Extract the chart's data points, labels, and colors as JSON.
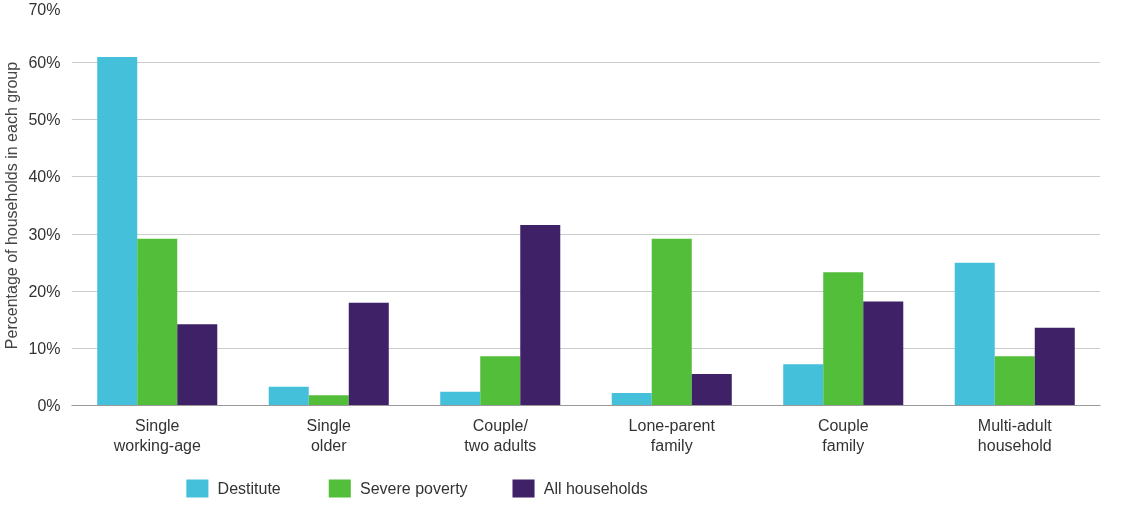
{
  "chart_data": {
    "type": "bar",
    "ylabel": "Percentage of households in each group",
    "categories": [
      "Single\nworking-age",
      "Single\nolder",
      "Couple/\ntwo adults",
      "Lone-parent\nfamily",
      "Couple\nfamily",
      "Multi-adult\nhousehold"
    ],
    "series": [
      {
        "name": "Destitute",
        "color": "#44c0db",
        "values": [
          61,
          3.3,
          2.4,
          2.2,
          7.2,
          25
        ]
      },
      {
        "name": "Severe poverty",
        "color": "#52be3a",
        "values": [
          29.2,
          1.8,
          8.6,
          29.2,
          23.3,
          8.6
        ]
      },
      {
        "name": "All households",
        "color": "#3f2167",
        "values": [
          14.2,
          18.0,
          31.6,
          5.5,
          18.2,
          13.6
        ]
      }
    ],
    "ylim": [
      0,
      70
    ],
    "yticks": [
      {
        "value": 0,
        "label": "0%"
      },
      {
        "value": 10,
        "label": "10%"
      },
      {
        "value": 20,
        "label": "20%"
      },
      {
        "value": 30,
        "label": "30%"
      },
      {
        "value": 40,
        "label": "40%"
      },
      {
        "value": 50,
        "label": "50%"
      },
      {
        "value": 60,
        "label": "60%"
      },
      {
        "value": 70,
        "label": "70%"
      }
    ],
    "grid": "y",
    "legend": "bottom left"
  }
}
